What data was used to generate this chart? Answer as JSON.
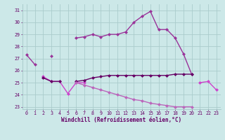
{
  "xlabel": "Windchill (Refroidissement éolien,°C)",
  "x": [
    0,
    1,
    2,
    3,
    4,
    5,
    6,
    7,
    8,
    9,
    10,
    11,
    12,
    13,
    14,
    15,
    16,
    17,
    18,
    19,
    20,
    21,
    22,
    23
  ],
  "line1": [
    27.3,
    26.5,
    null,
    27.2,
    null,
    null,
    28.7,
    28.8,
    29.0,
    28.8,
    29.0,
    29.0,
    29.2,
    30.0,
    30.5,
    30.9,
    29.4,
    29.4,
    28.7,
    27.4,
    25.7,
    null,
    null,
    null
  ],
  "line2": [
    null,
    null,
    25.5,
    25.1,
    25.1,
    24.1,
    25.0,
    25.0,
    null,
    null,
    null,
    null,
    null,
    null,
    null,
    null,
    null,
    null,
    null,
    null,
    null,
    25.0,
    25.1,
    24.4
  ],
  "line3": [
    null,
    null,
    25.4,
    25.1,
    25.1,
    null,
    25.1,
    25.2,
    25.4,
    25.5,
    25.6,
    25.6,
    25.6,
    25.6,
    25.6,
    25.6,
    25.6,
    25.6,
    25.7,
    25.7,
    25.7,
    null,
    null,
    null
  ],
  "line4": [
    null,
    null,
    null,
    null,
    null,
    null,
    25.0,
    24.8,
    24.6,
    24.4,
    24.2,
    24.0,
    23.8,
    23.6,
    23.5,
    23.3,
    23.2,
    23.1,
    23.0,
    23.0,
    23.0,
    null,
    null,
    null
  ],
  "line1_color": "#993399",
  "line2_color": "#cc44cc",
  "line3_color": "#660066",
  "line4_color": "#bb66bb",
  "bg_color": "#cce8e8",
  "grid_color": "#aacccc",
  "text_color": "#660066",
  "ylim": [
    22.8,
    31.5
  ],
  "yticks": [
    23,
    24,
    25,
    26,
    27,
    28,
    29,
    30,
    31
  ],
  "xlim": [
    -0.5,
    23.5
  ],
  "xticks": [
    0,
    1,
    2,
    3,
    4,
    5,
    6,
    7,
    8,
    9,
    10,
    11,
    12,
    13,
    14,
    15,
    16,
    17,
    18,
    19,
    20,
    21,
    22,
    23
  ]
}
